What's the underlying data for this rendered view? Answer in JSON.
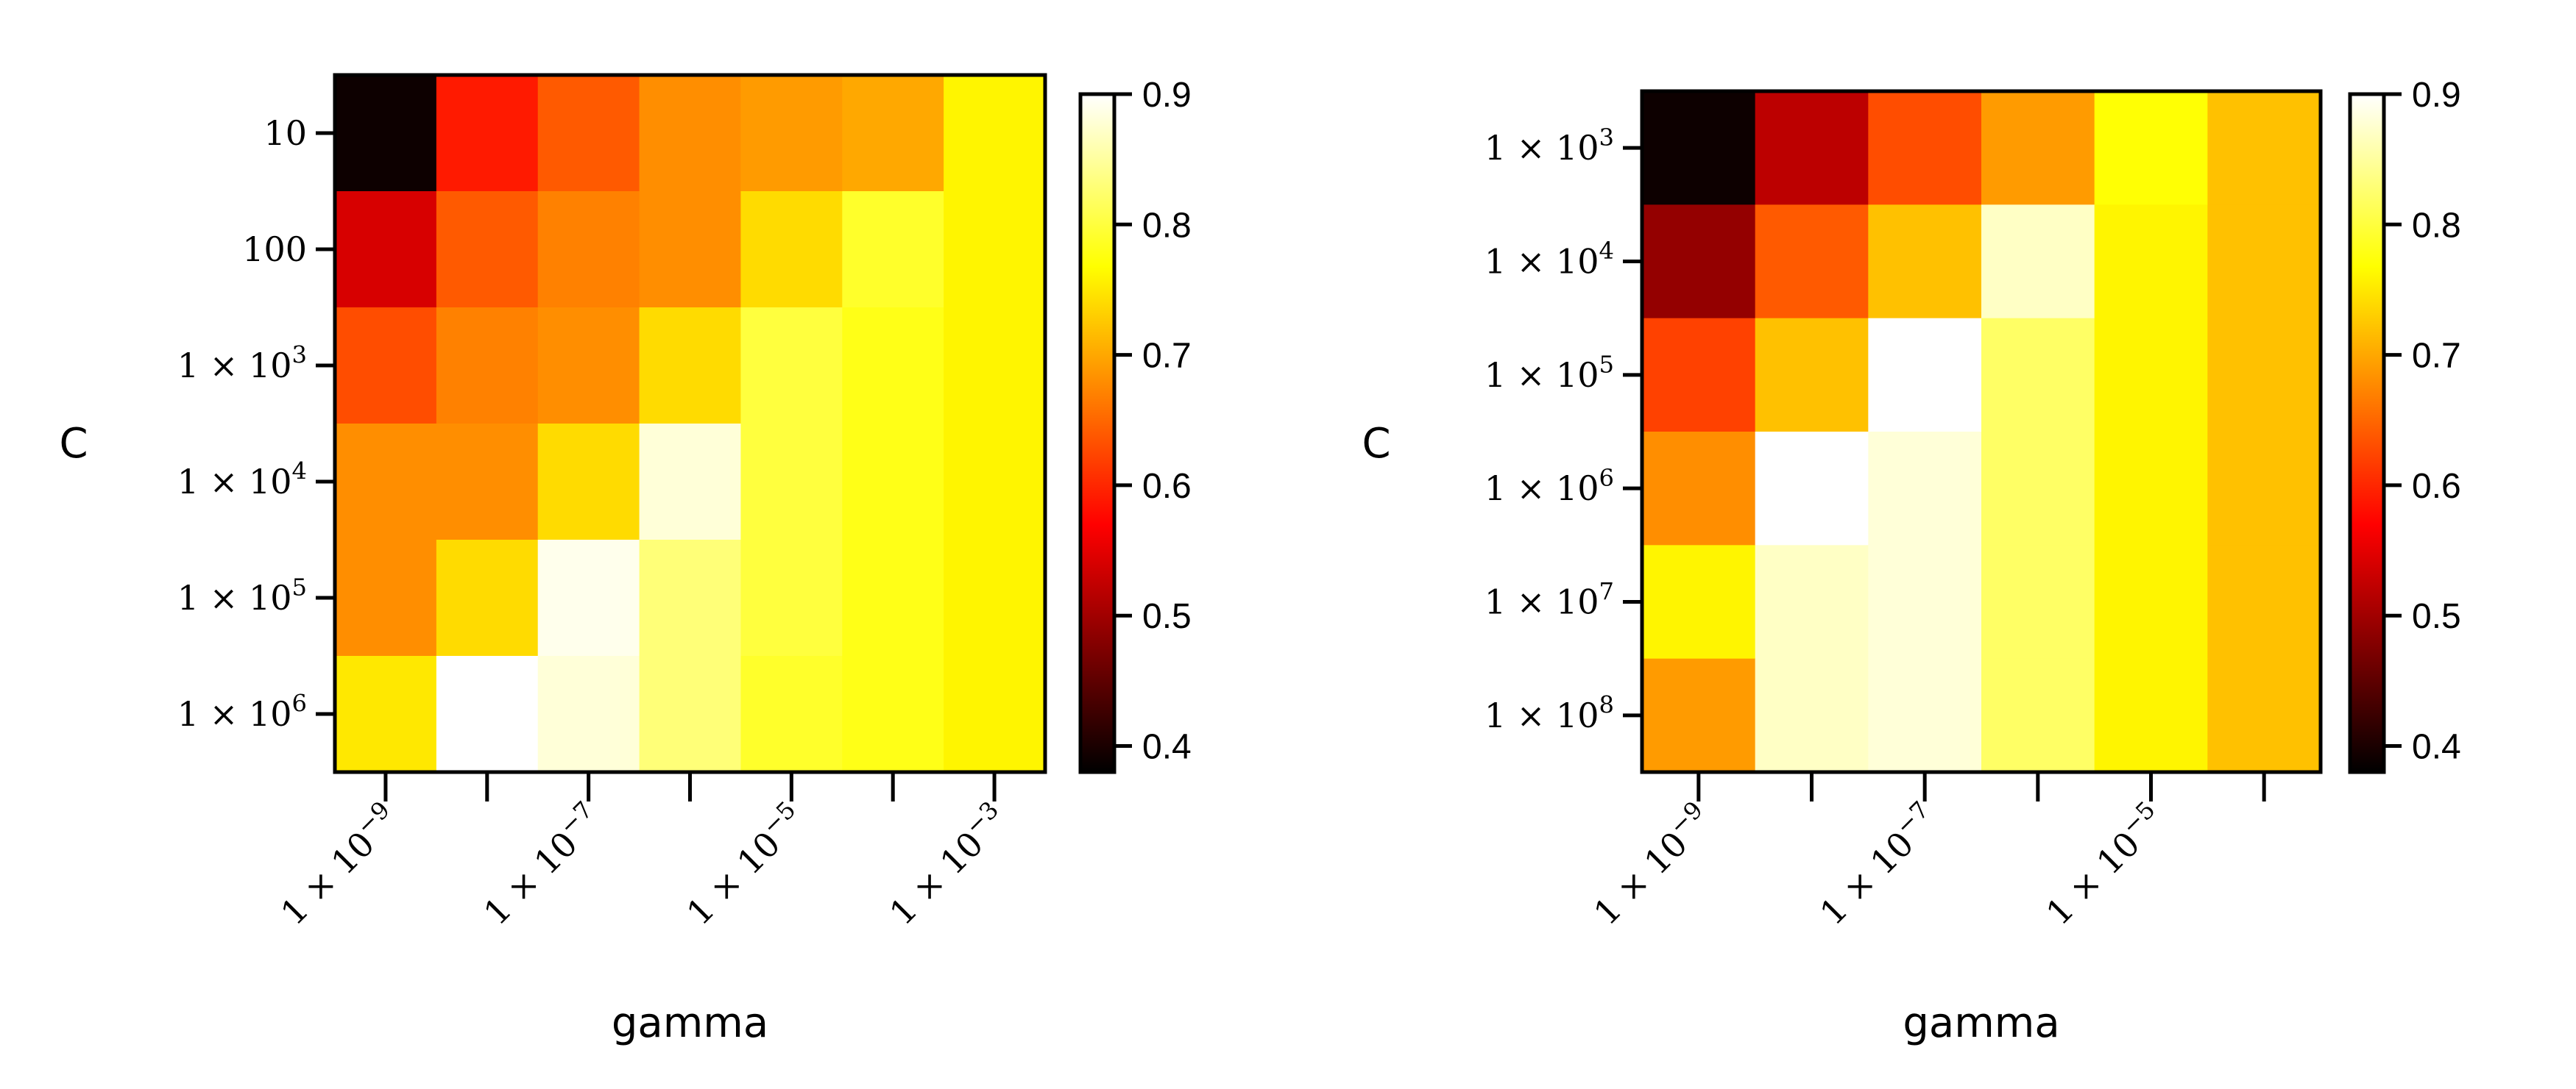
{
  "chart_data": [
    {
      "type": "heatmap",
      "colormap": "hot",
      "xlabel": "gamma",
      "ylabel": "C",
      "x_categories": [
        "1e-9",
        "1e-8",
        "1e-7",
        "1e-6",
        "1e-5",
        "1e-4",
        "1e-3"
      ],
      "x_tick_labels": [
        {
          "coef": "1",
          "exp": "−9"
        },
        {
          "coef": "1",
          "exp": "−7"
        },
        {
          "coef": "1",
          "exp": "−5"
        },
        {
          "coef": "1",
          "exp": "−3"
        }
      ],
      "x_labeled_ticks": [
        0,
        2,
        4,
        6
      ],
      "y_categories": [
        "10",
        "100",
        "1e3",
        "1e4",
        "1e5",
        "1e6"
      ],
      "y_tick_labels": [
        {
          "plain": "10"
        },
        {
          "plain": "100"
        },
        {
          "coef": "1",
          "exp": "3"
        },
        {
          "coef": "1",
          "exp": "4"
        },
        {
          "coef": "1",
          "exp": "5"
        },
        {
          "coef": "1",
          "exp": "6"
        }
      ],
      "values": [
        [
          0.39,
          0.59,
          0.64,
          0.68,
          0.69,
          0.7,
          0.76
        ],
        [
          0.54,
          0.64,
          0.67,
          0.68,
          0.74,
          0.79,
          0.76
        ],
        [
          0.63,
          0.67,
          0.68,
          0.74,
          0.8,
          0.78,
          0.76
        ],
        [
          0.68,
          0.68,
          0.74,
          0.88,
          0.8,
          0.78,
          0.76
        ],
        [
          0.68,
          0.74,
          0.89,
          0.83,
          0.8,
          0.78,
          0.76
        ],
        [
          0.75,
          0.92,
          0.88,
          0.83,
          0.79,
          0.78,
          0.76
        ]
      ],
      "colorbar": {
        "range": [
          0.38,
          0.9
        ],
        "ticks": [
          "0.9",
          "0.8",
          "0.7",
          "0.6",
          "0.5",
          "0.4"
        ]
      }
    },
    {
      "type": "heatmap",
      "colormap": "hot",
      "xlabel": "gamma",
      "ylabel": "C",
      "x_categories": [
        "1e-9",
        "1e-8",
        "1e-7",
        "1e-6",
        "1e-5",
        "1e-4"
      ],
      "x_tick_labels": [
        {
          "coef": "1",
          "exp": "−9"
        },
        {
          "coef": "1",
          "exp": "−7"
        },
        {
          "coef": "1",
          "exp": "−5"
        }
      ],
      "x_labeled_ticks": [
        0,
        2,
        4
      ],
      "y_categories": [
        "1e3",
        "1e4",
        "1e5",
        "1e6",
        "1e7",
        "1e8"
      ],
      "y_tick_labels": [
        {
          "coef": "1",
          "exp": "3"
        },
        {
          "coef": "1",
          "exp": "4"
        },
        {
          "coef": "1",
          "exp": "5"
        },
        {
          "coef": "1",
          "exp": "6"
        },
        {
          "coef": "1",
          "exp": "7"
        },
        {
          "coef": "1",
          "exp": "8"
        }
      ],
      "values": [
        [
          0.39,
          0.52,
          0.63,
          0.69,
          0.77,
          0.72
        ],
        [
          0.49,
          0.64,
          0.72,
          0.87,
          0.76,
          0.72
        ],
        [
          0.62,
          0.72,
          0.92,
          0.82,
          0.76,
          0.72
        ],
        [
          0.68,
          0.9,
          0.88,
          0.82,
          0.76,
          0.72
        ],
        [
          0.76,
          0.87,
          0.88,
          0.82,
          0.76,
          0.72
        ],
        [
          0.69,
          0.87,
          0.88,
          0.82,
          0.76,
          0.72
        ]
      ],
      "colorbar": {
        "range": [
          0.38,
          0.9
        ],
        "ticks": [
          "0.9",
          "0.8",
          "0.7",
          "0.6",
          "0.5",
          "0.4"
        ]
      }
    }
  ]
}
